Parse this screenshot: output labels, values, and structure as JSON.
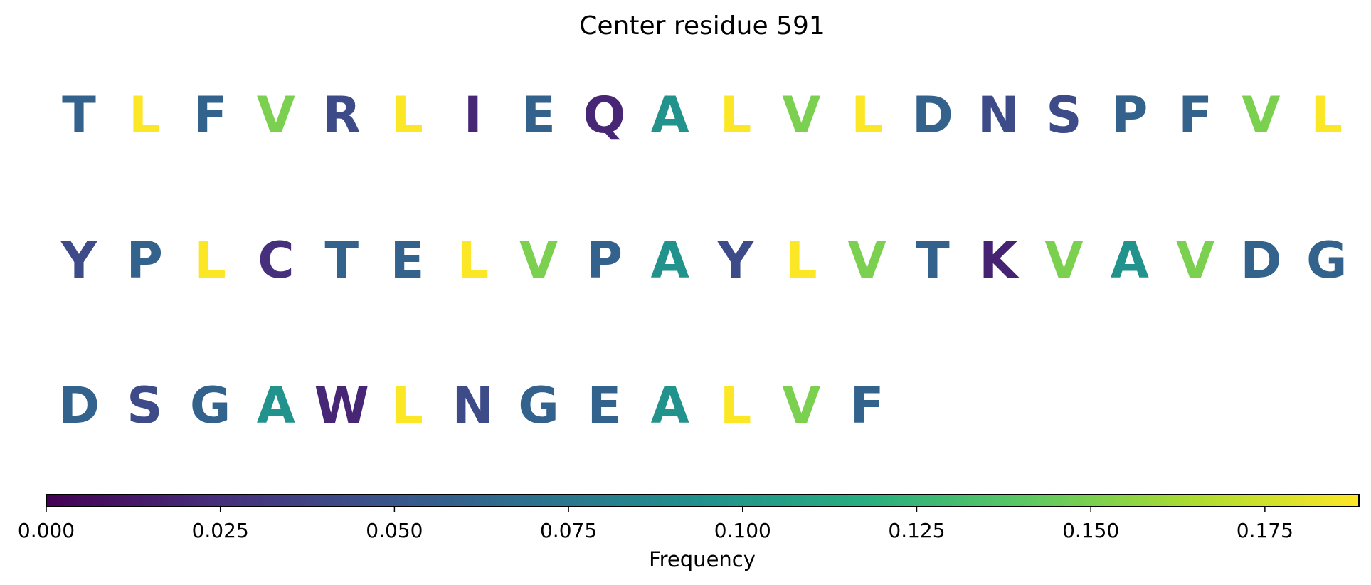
{
  "chart_data": {
    "type": "sequence-frequency",
    "title": "Center residue 591",
    "rows": [
      {
        "residues": [
          "T",
          "L",
          "F",
          "V",
          "R",
          "L",
          "I",
          "E",
          "Q",
          "A",
          "L",
          "V",
          "L",
          "D",
          "N",
          "S",
          "P",
          "F",
          "V",
          "L"
        ],
        "values": [
          0.059,
          0.188,
          0.059,
          0.15,
          0.043,
          0.188,
          0.02,
          0.059,
          0.02,
          0.095,
          0.188,
          0.15,
          0.188,
          0.059,
          0.043,
          0.043,
          0.059,
          0.059,
          0.15,
          0.188
        ]
      },
      {
        "residues": [
          "Y",
          "P",
          "L",
          "C",
          "T",
          "E",
          "L",
          "V",
          "P",
          "A",
          "Y",
          "L",
          "V",
          "T",
          "K",
          "V",
          "A",
          "V",
          "D",
          "G"
        ],
        "values": [
          0.043,
          0.059,
          0.188,
          0.025,
          0.059,
          0.059,
          0.188,
          0.15,
          0.059,
          0.095,
          0.043,
          0.188,
          0.15,
          0.059,
          0.018,
          0.15,
          0.095,
          0.15,
          0.059,
          0.059
        ]
      },
      {
        "residues": [
          "D",
          "S",
          "G",
          "A",
          "W",
          "L",
          "N",
          "G",
          "E",
          "A",
          "L",
          "V",
          "F"
        ],
        "values": [
          0.059,
          0.043,
          0.059,
          0.095,
          0.02,
          0.188,
          0.043,
          0.059,
          0.059,
          0.095,
          0.188,
          0.15,
          0.059
        ]
      }
    ],
    "colorbar": {
      "label": "Frequency",
      "range": [
        0,
        0.1885
      ],
      "colormap": "viridis",
      "ticks": [
        0.0,
        0.025,
        0.05,
        0.075,
        0.1,
        0.125,
        0.15,
        0.175
      ],
      "tick_labels": [
        "0.000",
        "0.025",
        "0.050",
        "0.075",
        "0.100",
        "0.125",
        "0.150",
        "0.175"
      ]
    }
  }
}
